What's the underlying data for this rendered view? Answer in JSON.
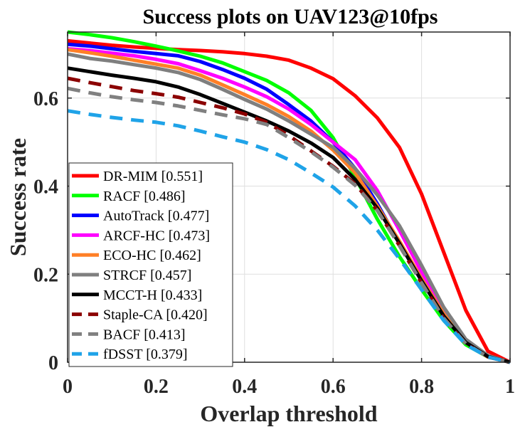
{
  "chart_data": {
    "type": "line",
    "title": "Success plots on UAV123@10fps",
    "xlabel": "Overlap threshold",
    "ylabel": "Success rate",
    "xlim": [
      0,
      1
    ],
    "ylim": [
      0,
      0.75
    ],
    "grid": true,
    "legend_position": "bottom-left",
    "x_ticks": [
      0,
      0.2,
      0.4,
      0.6,
      0.8,
      1
    ],
    "x_tick_labels": [
      "0",
      "0.2",
      "0.4",
      "0.6",
      "0.8",
      "1"
    ],
    "y_ticks": [
      0,
      0.2,
      0.4,
      0.6
    ],
    "y_tick_labels": [
      "0",
      "0.2",
      "0.4",
      "0.6"
    ],
    "x": [
      0,
      0.05,
      0.1,
      0.15,
      0.2,
      0.25,
      0.3,
      0.35,
      0.4,
      0.45,
      0.5,
      0.55,
      0.6,
      0.65,
      0.7,
      0.75,
      0.8,
      0.85,
      0.9,
      0.95,
      1.0
    ],
    "series": [
      {
        "name": "DR-MIM [0.551]",
        "color": "#ff0000",
        "dash": "solid",
        "values": [
          0.73,
          0.725,
          0.72,
          0.716,
          0.713,
          0.71,
          0.708,
          0.705,
          0.701,
          0.695,
          0.686,
          0.668,
          0.644,
          0.605,
          0.555,
          0.488,
          0.382,
          0.25,
          0.118,
          0.025,
          0.0
        ]
      },
      {
        "name": "RACF [0.486]",
        "color": "#00ff00",
        "dash": "solid",
        "values": [
          0.75,
          0.744,
          0.737,
          0.728,
          0.718,
          0.707,
          0.695,
          0.68,
          0.66,
          0.64,
          0.612,
          0.572,
          0.51,
          0.42,
          0.325,
          0.24,
          0.165,
          0.095,
          0.04,
          0.012,
          0.0
        ]
      },
      {
        "name": "AutoTrack [0.477]",
        "color": "#0000ff",
        "dash": "solid",
        "values": [
          0.722,
          0.718,
          0.712,
          0.706,
          0.701,
          0.696,
          0.683,
          0.665,
          0.645,
          0.62,
          0.585,
          0.548,
          0.5,
          0.44,
          0.36,
          0.27,
          0.185,
          0.105,
          0.045,
          0.012,
          0.0
        ]
      },
      {
        "name": "ARCF-HC [0.473]",
        "color": "#ff00ff",
        "dash": "solid",
        "values": [
          0.712,
          0.708,
          0.702,
          0.696,
          0.688,
          0.678,
          0.662,
          0.645,
          0.625,
          0.603,
          0.575,
          0.54,
          0.5,
          0.46,
          0.39,
          0.3,
          0.205,
          0.115,
          0.048,
          0.013,
          0.0
        ]
      },
      {
        "name": "ECO-HC [0.462]",
        "color": "#ff7f27",
        "dash": "solid",
        "values": [
          0.71,
          0.703,
          0.695,
          0.686,
          0.677,
          0.668,
          0.652,
          0.63,
          0.608,
          0.585,
          0.558,
          0.525,
          0.482,
          0.43,
          0.355,
          0.275,
          0.19,
          0.11,
          0.045,
          0.012,
          0.0
        ]
      },
      {
        "name": "STRCF [0.457]",
        "color": "#7f7f7f",
        "dash": "solid",
        "values": [
          0.7,
          0.69,
          0.684,
          0.676,
          0.668,
          0.658,
          0.642,
          0.62,
          0.597,
          0.575,
          0.548,
          0.518,
          0.488,
          0.44,
          0.38,
          0.31,
          0.22,
          0.125,
          0.052,
          0.015,
          0.0
        ]
      },
      {
        "name": "MCCT-H [0.433]",
        "color": "#000000",
        "dash": "solid",
        "values": [
          0.668,
          0.66,
          0.652,
          0.645,
          0.637,
          0.625,
          0.608,
          0.588,
          0.568,
          0.548,
          0.525,
          0.498,
          0.465,
          0.415,
          0.35,
          0.27,
          0.185,
          0.105,
          0.045,
          0.013,
          0.0
        ]
      },
      {
        "name": "Staple-CA [0.420]",
        "color": "#8b0000",
        "dash": "dashed",
        "values": [
          0.645,
          0.635,
          0.626,
          0.617,
          0.61,
          0.602,
          0.59,
          0.578,
          0.564,
          0.545,
          0.515,
          0.48,
          0.445,
          0.405,
          0.345,
          0.265,
          0.18,
          0.1,
          0.042,
          0.012,
          0.0
        ]
      },
      {
        "name": "BACF [0.413]",
        "color": "#808080",
        "dash": "dashed",
        "values": [
          0.622,
          0.612,
          0.603,
          0.596,
          0.59,
          0.582,
          0.572,
          0.562,
          0.553,
          0.54,
          0.51,
          0.478,
          0.443,
          0.402,
          0.345,
          0.265,
          0.18,
          0.1,
          0.042,
          0.012,
          0.0
        ]
      },
      {
        "name": "fDSST [0.379]",
        "color": "#1fa3e8",
        "dash": "dashed",
        "values": [
          0.571,
          0.563,
          0.556,
          0.55,
          0.545,
          0.537,
          0.525,
          0.512,
          0.5,
          0.483,
          0.46,
          0.43,
          0.398,
          0.355,
          0.3,
          0.235,
          0.165,
          0.095,
          0.04,
          0.012,
          0.0
        ]
      }
    ]
  }
}
